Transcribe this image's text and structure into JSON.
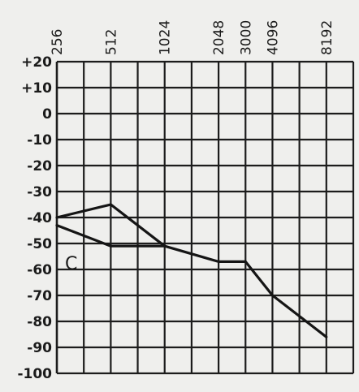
{
  "chart_data": {
    "type": "line",
    "x_ticks": [
      "256",
      "512",
      "1024",
      "2048",
      "3000",
      "4096",
      "8192"
    ],
    "y_ticks": [
      "+20",
      "+10",
      "0",
      "-10",
      "-20",
      "-30",
      "-40",
      "-50",
      "-60",
      "-70",
      "-80",
      "-90",
      "-100"
    ],
    "ylim": [
      20,
      -100
    ],
    "grid": true,
    "annotation": "C",
    "series": [
      {
        "values": [
          {
            "x": 256,
            "y": -40
          },
          {
            "x": 512,
            "y": -35
          },
          {
            "x": 1024,
            "y": -51
          }
        ]
      },
      {
        "values": [
          {
            "x": 256,
            "y": -43
          },
          {
            "x": 512,
            "y": -51
          },
          {
            "x": 1024,
            "y": -51
          },
          {
            "x": 2048,
            "y": -57
          },
          {
            "x": 3000,
            "y": -57
          },
          {
            "x": 4096,
            "y": -70
          },
          {
            "x": 8192,
            "y": -86
          }
        ]
      }
    ],
    "line_color": "#151515",
    "grid_color": "#1c1c1c"
  }
}
